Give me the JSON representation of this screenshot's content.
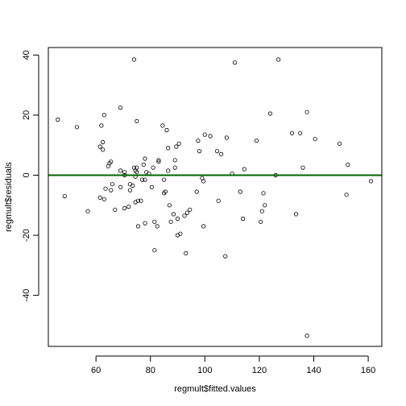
{
  "chart_data": {
    "type": "scatter",
    "title": "",
    "xlabel": "regmult$fitted.values",
    "ylabel": "regmult$residuals",
    "xlim": [
      42.5,
      165
    ],
    "ylim": [
      -57,
      42.5
    ],
    "xticks": [
      60,
      80,
      100,
      120,
      140,
      160
    ],
    "xtick_labels": [
      "60",
      "80",
      "100",
      "120",
      "140",
      "160"
    ],
    "yticks": [
      -40,
      -20,
      0,
      20,
      40
    ],
    "ytick_labels": [
      "-40",
      "-20",
      "0",
      "20",
      "40"
    ],
    "grid": false,
    "reference_line": {
      "y": 0,
      "color": "#006400"
    },
    "point_color": "#000000",
    "points": [
      [
        46,
        18.5
      ],
      [
        48.5,
        -7
      ],
      [
        53,
        16
      ],
      [
        57,
        -12
      ],
      [
        61.5,
        9.5
      ],
      [
        61.5,
        -7.5
      ],
      [
        62,
        16.5
      ],
      [
        62.5,
        11
      ],
      [
        62.5,
        8.5
      ],
      [
        63,
        20
      ],
      [
        63,
        -8
      ],
      [
        63.5,
        -4.5
      ],
      [
        64.5,
        3
      ],
      [
        65,
        4
      ],
      [
        65.5,
        4.5
      ],
      [
        65.5,
        -5
      ],
      [
        66,
        -3
      ],
      [
        67,
        -11.5
      ],
      [
        69,
        22.5
      ],
      [
        69,
        1.5
      ],
      [
        69,
        -4
      ],
      [
        70.5,
        0
      ],
      [
        70.5,
        1
      ],
      [
        70.5,
        -11
      ],
      [
        72,
        -10.5
      ],
      [
        72.5,
        -3
      ],
      [
        72.5,
        -5
      ],
      [
        73.5,
        -3.5
      ],
      [
        74,
        38.5
      ],
      [
        74,
        2.5
      ],
      [
        74.5,
        1.5
      ],
      [
        74.5,
        -0.5
      ],
      [
        74.5,
        -9
      ],
      [
        75,
        18
      ],
      [
        75,
        2.5
      ],
      [
        75,
        1
      ],
      [
        75.5,
        -17
      ],
      [
        75.5,
        -8.5
      ],
      [
        76.5,
        -8.5
      ],
      [
        77,
        -1.5
      ],
      [
        77.5,
        3.5
      ],
      [
        78,
        5.5
      ],
      [
        78,
        -1.5
      ],
      [
        78,
        -16
      ],
      [
        78.5,
        1
      ],
      [
        79.5,
        0.5
      ],
      [
        80.5,
        -4
      ],
      [
        81,
        2.5
      ],
      [
        81.5,
        -15.5
      ],
      [
        81.5,
        -25
      ],
      [
        82.5,
        -17
      ],
      [
        83,
        4.5
      ],
      [
        83,
        5
      ],
      [
        84.5,
        16.5
      ],
      [
        85,
        -1.5
      ],
      [
        85,
        -6
      ],
      [
        85.5,
        -5.5
      ],
      [
        86,
        15
      ],
      [
        86.5,
        9
      ],
      [
        86.5,
        1.5
      ],
      [
        87,
        -10
      ],
      [
        87.5,
        -15.5
      ],
      [
        88.5,
        -13
      ],
      [
        89,
        2.5
      ],
      [
        89,
        5
      ],
      [
        89.5,
        9.5
      ],
      [
        90,
        -14.5
      ],
      [
        90,
        -20
      ],
      [
        90.5,
        10.5
      ],
      [
        91,
        -19.5
      ],
      [
        92.5,
        -13.5
      ],
      [
        93,
        -26
      ],
      [
        93.5,
        -12.5
      ],
      [
        94.5,
        -11.5
      ],
      [
        97,
        -5.5
      ],
      [
        97.5,
        11.5
      ],
      [
        98,
        8
      ],
      [
        99,
        -1
      ],
      [
        99.5,
        -17
      ],
      [
        99.5,
        -2
      ],
      [
        100,
        13.5
      ],
      [
        102,
        13
      ],
      [
        104.5,
        8
      ],
      [
        105,
        -8.5
      ],
      [
        106,
        7
      ],
      [
        107.5,
        -27
      ],
      [
        108,
        12.5
      ],
      [
        110,
        0.5
      ],
      [
        111,
        37.5
      ],
      [
        113,
        -5.5
      ],
      [
        114,
        -14.5
      ],
      [
        114.5,
        2
      ],
      [
        119,
        11.5
      ],
      [
        120.5,
        -15.5
      ],
      [
        121,
        -12
      ],
      [
        121.5,
        -6
      ],
      [
        122,
        -10
      ],
      [
        124,
        20.5
      ],
      [
        126,
        0
      ],
      [
        127,
        38.5
      ],
      [
        132,
        14
      ],
      [
        133.5,
        -13
      ],
      [
        135,
        14
      ],
      [
        136,
        2.5
      ],
      [
        137.5,
        21
      ],
      [
        137.5,
        -53.5
      ],
      [
        140.5,
        12
      ],
      [
        149.5,
        10.5
      ],
      [
        152,
        -6.5
      ],
      [
        152.5,
        3.5
      ],
      [
        161,
        -2
      ]
    ]
  }
}
